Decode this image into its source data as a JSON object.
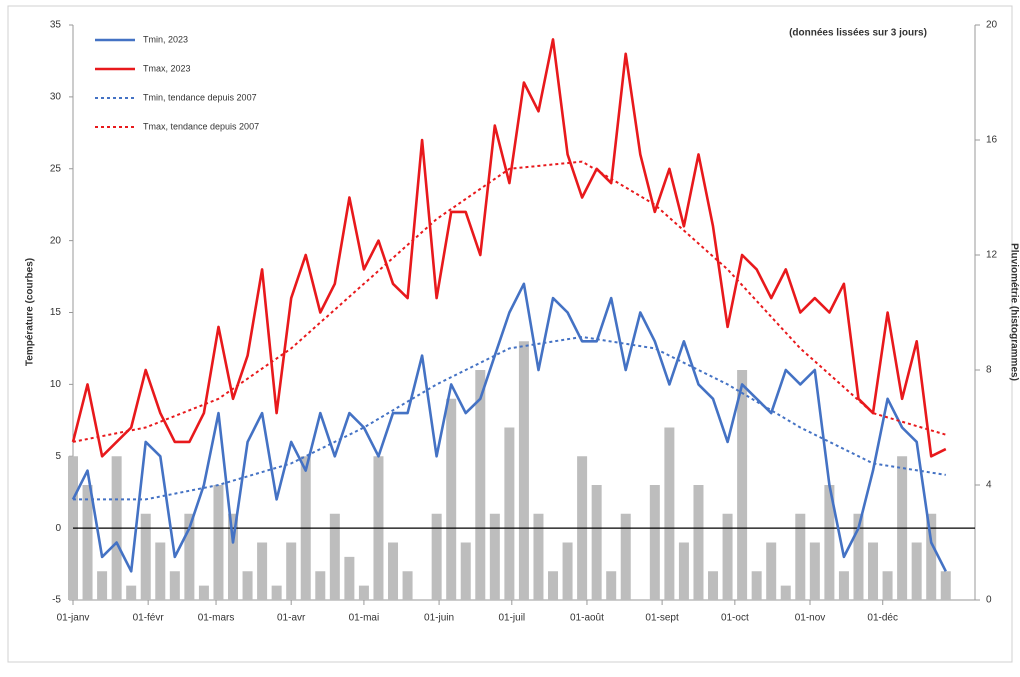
{
  "chart_data": {
    "type": "line",
    "annotation": "(données lissées sur 3 jours)",
    "y_label": "Température (courbes)",
    "y2_label": "Pluviométrie (histogrammes)",
    "xlim": [
      0,
      370
    ],
    "xticks": [
      {
        "value": 0,
        "label": "01-janv"
      },
      {
        "value": 31,
        "label": "01-févr"
      },
      {
        "value": 59,
        "label": "01-mars"
      },
      {
        "value": 90,
        "label": "01-avr"
      },
      {
        "value": 120,
        "label": "01-mai"
      },
      {
        "value": 151,
        "label": "01-juin"
      },
      {
        "value": 181,
        "label": "01-juil"
      },
      {
        "value": 212,
        "label": "01-août"
      },
      {
        "value": 243,
        "label": "01-sept"
      },
      {
        "value": 273,
        "label": "01-oct"
      },
      {
        "value": 304,
        "label": "01-nov"
      },
      {
        "value": 334,
        "label": "01-déc"
      }
    ],
    "ylim": [
      -5,
      35
    ],
    "yticks": [
      -5,
      0,
      5,
      10,
      15,
      20,
      25,
      30,
      35
    ],
    "y2lim": [
      0,
      20
    ],
    "y2ticks": [
      0,
      4,
      8,
      12,
      16,
      20
    ],
    "x": [
      0,
      6,
      12,
      18,
      24,
      30,
      36,
      42,
      48,
      54,
      60,
      66,
      72,
      78,
      84,
      90,
      96,
      102,
      108,
      114,
      120,
      126,
      132,
      138,
      144,
      150,
      156,
      162,
      168,
      174,
      180,
      186,
      192,
      198,
      204,
      210,
      216,
      222,
      228,
      234,
      240,
      246,
      252,
      258,
      264,
      270,
      276,
      282,
      288,
      294,
      300,
      306,
      312,
      318,
      324,
      330,
      336,
      342,
      348,
      354,
      360
    ],
    "series": [
      {
        "name": "Pluviométrie",
        "type": "bar",
        "axis": "y2",
        "color": "#bdbdbd",
        "values": [
          5,
          4,
          1,
          5,
          0.5,
          3,
          2,
          1,
          3,
          0.5,
          4,
          3,
          1,
          2,
          0.5,
          2,
          5,
          1,
          3,
          1.5,
          0.5,
          5,
          2,
          1,
          0,
          3,
          7,
          2,
          8,
          3,
          6,
          9,
          3,
          1,
          2,
          5,
          4,
          1,
          3,
          0,
          4,
          6,
          2,
          4,
          1,
          3,
          8,
          1,
          2,
          0.5,
          3,
          2,
          4,
          1,
          3,
          2,
          1,
          5,
          2,
          3,
          1
        ]
      },
      {
        "name": "Tmin, 2023",
        "type": "line",
        "color": "#4472c4",
        "dashed": false,
        "values": [
          2,
          4,
          -2,
          -1,
          -3,
          6,
          5,
          -2,
          0,
          3,
          8,
          -1,
          6,
          8,
          2,
          6,
          4,
          8,
          5,
          8,
          7,
          5,
          8,
          8,
          12,
          5,
          10,
          8,
          9,
          12,
          15,
          17,
          11,
          16,
          15,
          13,
          13,
          16,
          11,
          15,
          13,
          10,
          13,
          10,
          9,
          6,
          10,
          9,
          8,
          11,
          10,
          11,
          3,
          -2,
          0,
          4,
          9,
          7,
          6,
          -1,
          -3
        ]
      },
      {
        "name": "Tmax, 2023",
        "type": "line",
        "color": "#e8191c",
        "dashed": false,
        "values": [
          6,
          10,
          5,
          6,
          7,
          11,
          8,
          6,
          6,
          8,
          14,
          9,
          12,
          18,
          8,
          16,
          19,
          15,
          17,
          23,
          18,
          20,
          17,
          16,
          27,
          16,
          22,
          22,
          19,
          28,
          24,
          31,
          29,
          34,
          26,
          23,
          25,
          24,
          33,
          26,
          22,
          25,
          21,
          26,
          21,
          14,
          19,
          18,
          16,
          18,
          15,
          16,
          15,
          17,
          9,
          8,
          15,
          9,
          13,
          5,
          5.5
        ]
      },
      {
        "name": "Tmin, tendance depuis 2007",
        "type": "line",
        "color": "#4472c4",
        "dashed": true,
        "x": [
          0,
          30,
          60,
          90,
          120,
          150,
          180,
          210,
          240,
          270,
          300,
          330,
          360
        ],
        "values": [
          2,
          2,
          3,
          4.5,
          7,
          10,
          12.5,
          13.3,
          12.5,
          10,
          7,
          4.5,
          3.7
        ]
      },
      {
        "name": "Tmax, tendance depuis 2007",
        "type": "line",
        "color": "#e8191c",
        "dashed": true,
        "x": [
          0,
          30,
          60,
          90,
          120,
          150,
          180,
          210,
          240,
          270,
          300,
          330,
          360
        ],
        "values": [
          6,
          7,
          9,
          12.5,
          17,
          21.5,
          25,
          25.5,
          22.5,
          18,
          12.5,
          8,
          6.5
        ]
      }
    ]
  }
}
